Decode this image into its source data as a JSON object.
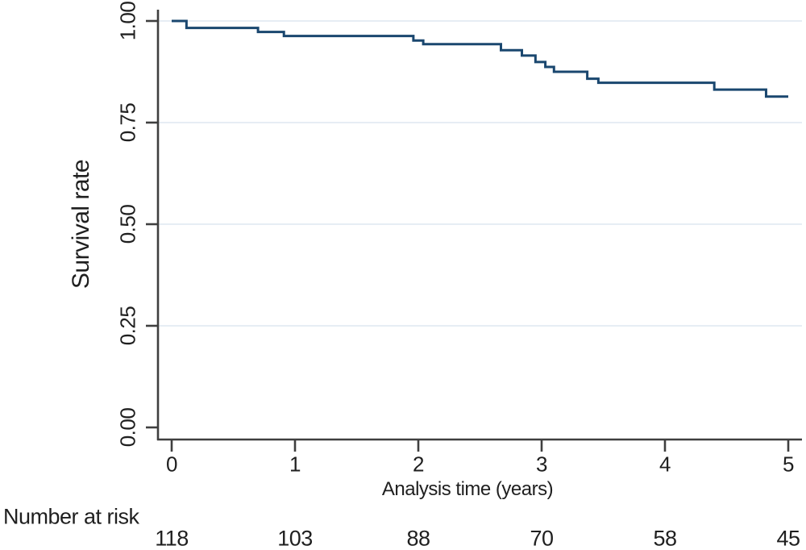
{
  "chart_data": {
    "type": "line",
    "subtype": "kaplan-meier-step",
    "title": "",
    "xlabel": "Analysis time (years)",
    "ylabel": "Survival rate",
    "xlim": [
      0,
      5
    ],
    "ylim": [
      0.0,
      1.0
    ],
    "x_tick_labels": [
      "0",
      "1",
      "2",
      "3",
      "4",
      "5"
    ],
    "x_tick_values": [
      0,
      1,
      2,
      3,
      4,
      5
    ],
    "y_tick_labels": [
      "1.00",
      "0.75",
      "0.50",
      "0.25",
      "0.00"
    ],
    "y_tick_values": [
      1.0,
      0.75,
      0.5,
      0.25,
      0.0
    ],
    "grid": true,
    "grid_tick_indices": [
      0,
      1,
      2,
      3
    ],
    "legend": false,
    "series": [
      {
        "name": "Survival rate",
        "color": "#1a476f",
        "step_points": [
          [
            0.0,
            1.0
          ],
          [
            0.12,
            0.983
          ],
          [
            0.7,
            0.973
          ],
          [
            0.91,
            0.963
          ],
          [
            1.96,
            0.952
          ],
          [
            2.04,
            0.943
          ],
          [
            2.67,
            0.928
          ],
          [
            2.84,
            0.915
          ],
          [
            2.95,
            0.899
          ],
          [
            3.03,
            0.887
          ],
          [
            3.1,
            0.875
          ],
          [
            3.37,
            0.858
          ],
          [
            3.46,
            0.848
          ],
          [
            4.4,
            0.831
          ],
          [
            4.82,
            0.814
          ]
        ],
        "end_time": 5.0
      }
    ]
  },
  "risk_table": {
    "label": "Number at risk",
    "values": [
      "118",
      "103",
      "88",
      "70",
      "58",
      "45"
    ]
  },
  "colors": {
    "curve": "#1a476f",
    "grid": "#dde7f0",
    "axis": "#3f3f3f",
    "text": "#1f1f1f"
  }
}
